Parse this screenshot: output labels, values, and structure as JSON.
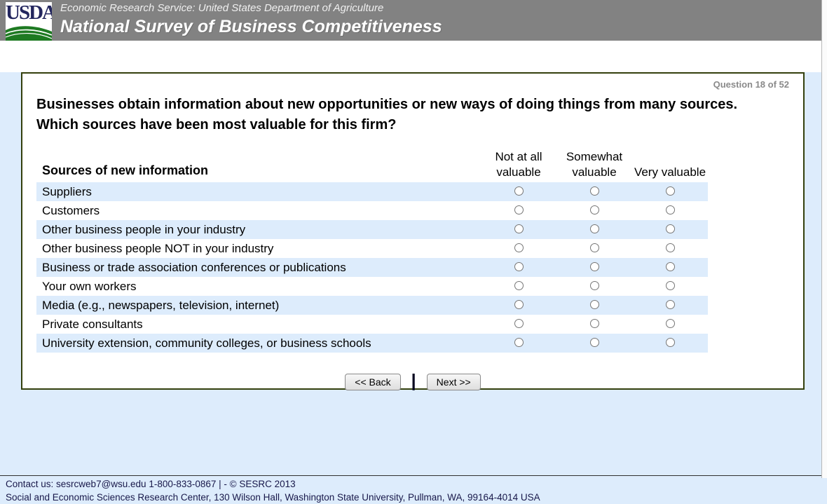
{
  "header": {
    "logo_text": "USDA",
    "agency_line": "Economic Research Service: United States Department of Agriculture",
    "survey_title": "National Survey of Business Competitiveness"
  },
  "question": {
    "progress": "Question 18 of 52",
    "text": "Businesses obtain information about new opportunities or new ways of doing things from many sources. Which sources have been most valuable for this firm?"
  },
  "table": {
    "row_header": "Sources of new information",
    "columns": [
      "Not at all valuable",
      "Somewhat valuable",
      "Very valuable"
    ],
    "rows": [
      "Suppliers",
      "Customers",
      "Other business people in your industry",
      "Other business people NOT in your industry",
      "Business or trade association conferences or publications",
      "Your own workers",
      "Media (e.g., newspapers, television, internet)",
      "Private consultants",
      "University extension, community colleges, or business schools"
    ]
  },
  "nav": {
    "back_label": "<< Back",
    "separator": "|",
    "next_label": "Next >>"
  },
  "footer": {
    "line1_prefix": "Contact us: ",
    "email": "sesrcweb7@wsu.edu",
    "line1_suffix": " 1-800-833-0867 | - © SESRC 2013",
    "line2": "Social and Economic Sciences Research Center, 130 Wilson Hall, Washington State University, Pullman, WA, 99164-4014 USA"
  },
  "colors": {
    "header_gray": "#828282",
    "page_blue": "#ddecfc",
    "panel_border_green": "#34400d",
    "logo_navy": "#23265e",
    "logo_green": "#1e7a22",
    "footer_text": "#18184a"
  }
}
